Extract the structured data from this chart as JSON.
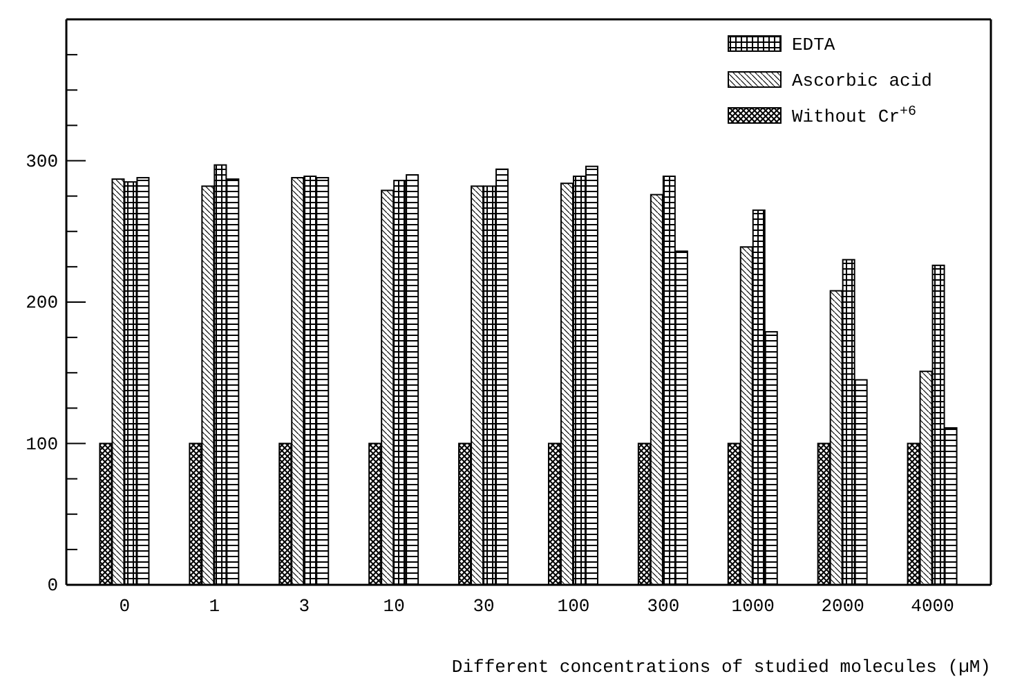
{
  "chart_data": {
    "type": "bar",
    "xlabel": "Different concentrations of studied molecules  (µM)",
    "categories": [
      "0",
      "1",
      "3",
      "10",
      "30",
      "100",
      "300",
      "1000",
      "2000",
      "4000"
    ],
    "series": [
      {
        "name": "Without Cr$^{+6}$",
        "color": "#000000",
        "values": [
          100,
          100,
          100,
          100,
          100,
          100,
          100,
          100,
          100,
          100
        ]
      },
      {
        "name": "Ascorbic acid",
        "color": "#000000",
        "values": [
          287,
          282,
          288,
          279,
          282,
          284,
          276,
          239,
          208,
          151
        ]
      },
      {
        "name": "EDTA",
        "color": "#000000",
        "values": [
          285,
          297,
          289,
          286,
          282,
          289,
          289,
          265,
          230,
          226
        ]
      },
      {
        "color": "#000000",
        "values": [
          288,
          287,
          288,
          290,
          294,
          296,
          236,
          179,
          145,
          111
        ]
      }
    ],
    "ylim": [
      0,
      400
    ],
    "yticks": [
      0,
      {
        "value": 25,
        "label": null
      },
      {
        "value": 50,
        "label": null
      },
      {
        "value": 75,
        "label": null
      },
      100,
      {
        "value": 125,
        "label": null
      },
      {
        "value": 150,
        "label": null
      },
      {
        "value": 175,
        "label": null
      },
      200,
      {
        "value": 225,
        "label": null
      },
      {
        "value": 250,
        "label": null
      },
      {
        "value": 275,
        "label": null
      },
      300,
      {
        "value": 325,
        "label": null
      },
      {
        "value": 350,
        "label": null
      },
      {
        "value": 375,
        "label": null
      }
    ],
    "grid": false,
    "legend": "top right"
  }
}
